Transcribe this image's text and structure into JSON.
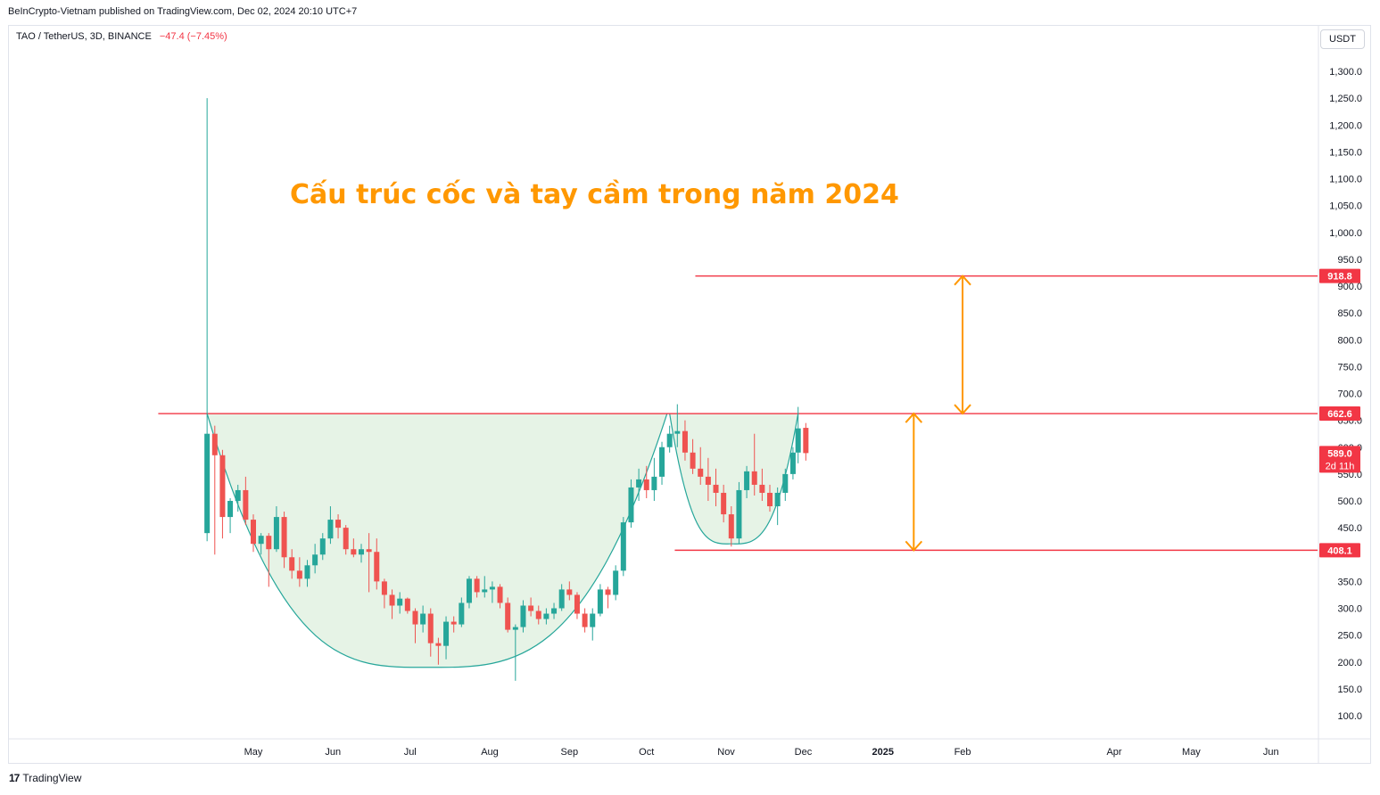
{
  "header": {
    "published": "BeInCrypto-Vietnam published on TradingView.com, Dec 02, 2024 20:10 UTC+7"
  },
  "symbol": {
    "name": "TAO / TetherUS, 3D, BINANCE",
    "change": "−47.4 (−7.45%)"
  },
  "currency_button": "USDT",
  "footer": {
    "brand": "TradingView",
    "logo_icon": "tradingview-logo-icon"
  },
  "colors": {
    "up": "#26a69a",
    "down": "#ef5350",
    "level_line": "#f23645",
    "arrow": "#ff9800",
    "cup_fill": "#e6f3e6",
    "cup_stroke": "#26a69a",
    "title": "#ff9800"
  },
  "chart_data": {
    "type": "candlestick",
    "annotation_title": "Cấu trúc cốc và tay cầm trong năm 2024",
    "y_axis": {
      "ticks": [
        100,
        150,
        200,
        250,
        300,
        350,
        450,
        500,
        550,
        600,
        650,
        700,
        750,
        800,
        850,
        900,
        950,
        1000,
        1050,
        1100,
        1150,
        1200,
        1250,
        1300
      ],
      "tick_labels": [
        "100.0",
        "150.0",
        "200.0",
        "250.0",
        "300.0",
        "350.0",
        "450.0",
        "500.0",
        "550.0",
        "600.0",
        "650.0",
        "700.0",
        "750.0",
        "800.0",
        "850.0",
        "900.0",
        "950.0",
        "1,000.0",
        "1,050.0",
        "1,100.0",
        "1,150.0",
        "1,200.0",
        "1,250.0",
        "1,300.0"
      ],
      "range": [
        55,
        1345
      ]
    },
    "x_axis": {
      "labels": [
        {
          "date": "2024-05-01",
          "text": "May"
        },
        {
          "date": "2024-06-01",
          "text": "Jun"
        },
        {
          "date": "2024-07-01",
          "text": "Jul"
        },
        {
          "date": "2024-08-01",
          "text": "Aug"
        },
        {
          "date": "2024-09-01",
          "text": "Sep"
        },
        {
          "date": "2024-10-01",
          "text": "Oct"
        },
        {
          "date": "2024-11-01",
          "text": "Nov"
        },
        {
          "date": "2024-12-01",
          "text": "Dec"
        },
        {
          "date": "2025-01-01",
          "text": "2025",
          "bold": true
        },
        {
          "date": "2025-02-01",
          "text": "Feb"
        },
        {
          "date": "2025-04-01",
          "text": "Apr"
        },
        {
          "date": "2025-05-01",
          "text": "May"
        },
        {
          "date": "2025-06-01",
          "text": "Jun"
        }
      ]
    },
    "price_badges": [
      {
        "value": 918.8,
        "label": "918.8"
      },
      {
        "value": 662.6,
        "label": "662.6"
      },
      {
        "value": 589.0,
        "label": "589.0",
        "sub": "2d 11h"
      },
      {
        "value": 408.1,
        "label": "408.1"
      }
    ],
    "horizontal_levels": [
      {
        "value": 662.6,
        "from": "2024-03-25",
        "to": "2025-06-20"
      },
      {
        "value": 918.8,
        "from": "2024-10-20",
        "to": "2025-06-20"
      },
      {
        "value": 408.1,
        "from": "2024-10-12",
        "to": "2025-06-20"
      }
    ],
    "arrows": [
      {
        "date": "2025-02-01",
        "from": 662.6,
        "to": 918.8
      },
      {
        "date": "2025-01-13",
        "from": 408.1,
        "to": 662.6
      }
    ],
    "cup": {
      "start": "2024-04-13",
      "bottom": "2024-07-08",
      "end": "2024-10-09",
      "rim": 662.6,
      "low": 190
    },
    "handle": {
      "start": "2024-10-10",
      "bottom": "2024-11-03",
      "end": "2024-11-29",
      "rim": 662.6,
      "low": 420
    },
    "candles": [
      {
        "d": "2024-04-13",
        "o": 440,
        "h": 1250,
        "l": 425,
        "c": 625
      },
      {
        "d": "2024-04-16",
        "o": 625,
        "h": 640,
        "l": 400,
        "c": 585
      },
      {
        "d": "2024-04-19",
        "o": 585,
        "h": 595,
        "l": 430,
        "c": 470
      },
      {
        "d": "2024-04-22",
        "o": 470,
        "h": 505,
        "l": 440,
        "c": 500
      },
      {
        "d": "2024-04-25",
        "o": 500,
        "h": 530,
        "l": 480,
        "c": 520
      },
      {
        "d": "2024-04-28",
        "o": 520,
        "h": 545,
        "l": 455,
        "c": 465
      },
      {
        "d": "2024-05-01",
        "o": 465,
        "h": 475,
        "l": 405,
        "c": 420
      },
      {
        "d": "2024-05-04",
        "o": 420,
        "h": 440,
        "l": 400,
        "c": 435
      },
      {
        "d": "2024-05-07",
        "o": 435,
        "h": 440,
        "l": 340,
        "c": 410
      },
      {
        "d": "2024-05-10",
        "o": 410,
        "h": 490,
        "l": 405,
        "c": 470
      },
      {
        "d": "2024-05-13",
        "o": 470,
        "h": 480,
        "l": 375,
        "c": 395
      },
      {
        "d": "2024-05-16",
        "o": 395,
        "h": 410,
        "l": 355,
        "c": 370
      },
      {
        "d": "2024-05-19",
        "o": 370,
        "h": 395,
        "l": 340,
        "c": 355
      },
      {
        "d": "2024-05-22",
        "o": 355,
        "h": 390,
        "l": 340,
        "c": 380
      },
      {
        "d": "2024-05-25",
        "o": 380,
        "h": 420,
        "l": 365,
        "c": 400
      },
      {
        "d": "2024-05-28",
        "o": 400,
        "h": 440,
        "l": 390,
        "c": 430
      },
      {
        "d": "2024-05-31",
        "o": 430,
        "h": 490,
        "l": 420,
        "c": 465
      },
      {
        "d": "2024-06-03",
        "o": 465,
        "h": 475,
        "l": 430,
        "c": 450
      },
      {
        "d": "2024-06-06",
        "o": 450,
        "h": 455,
        "l": 400,
        "c": 410
      },
      {
        "d": "2024-06-09",
        "o": 410,
        "h": 430,
        "l": 395,
        "c": 400
      },
      {
        "d": "2024-06-12",
        "o": 400,
        "h": 420,
        "l": 385,
        "c": 410
      },
      {
        "d": "2024-06-15",
        "o": 410,
        "h": 440,
        "l": 330,
        "c": 405
      },
      {
        "d": "2024-06-18",
        "o": 405,
        "h": 430,
        "l": 335,
        "c": 350
      },
      {
        "d": "2024-06-21",
        "o": 350,
        "h": 355,
        "l": 300,
        "c": 325
      },
      {
        "d": "2024-06-24",
        "o": 325,
        "h": 335,
        "l": 280,
        "c": 305
      },
      {
        "d": "2024-06-27",
        "o": 305,
        "h": 330,
        "l": 290,
        "c": 318
      },
      {
        "d": "2024-06-30",
        "o": 318,
        "h": 320,
        "l": 290,
        "c": 295
      },
      {
        "d": "2024-07-03",
        "o": 295,
        "h": 300,
        "l": 235,
        "c": 270
      },
      {
        "d": "2024-07-06",
        "o": 270,
        "h": 305,
        "l": 255,
        "c": 290
      },
      {
        "d": "2024-07-09",
        "o": 290,
        "h": 300,
        "l": 210,
        "c": 235
      },
      {
        "d": "2024-07-12",
        "o": 235,
        "h": 245,
        "l": 195,
        "c": 230
      },
      {
        "d": "2024-07-15",
        "o": 230,
        "h": 285,
        "l": 205,
        "c": 275
      },
      {
        "d": "2024-07-18",
        "o": 275,
        "h": 285,
        "l": 255,
        "c": 270
      },
      {
        "d": "2024-07-21",
        "o": 270,
        "h": 320,
        "l": 265,
        "c": 310
      },
      {
        "d": "2024-07-24",
        "o": 310,
        "h": 360,
        "l": 300,
        "c": 355
      },
      {
        "d": "2024-07-27",
        "o": 355,
        "h": 360,
        "l": 320,
        "c": 330
      },
      {
        "d": "2024-07-30",
        "o": 330,
        "h": 360,
        "l": 320,
        "c": 335
      },
      {
        "d": "2024-08-02",
        "o": 335,
        "h": 350,
        "l": 310,
        "c": 340
      },
      {
        "d": "2024-08-05",
        "o": 340,
        "h": 345,
        "l": 300,
        "c": 310
      },
      {
        "d": "2024-08-08",
        "o": 310,
        "h": 320,
        "l": 255,
        "c": 260
      },
      {
        "d": "2024-08-11",
        "o": 260,
        "h": 270,
        "l": 165,
        "c": 265
      },
      {
        "d": "2024-08-14",
        "o": 265,
        "h": 315,
        "l": 255,
        "c": 305
      },
      {
        "d": "2024-08-17",
        "o": 305,
        "h": 320,
        "l": 285,
        "c": 295
      },
      {
        "d": "2024-08-20",
        "o": 295,
        "h": 305,
        "l": 270,
        "c": 280
      },
      {
        "d": "2024-08-23",
        "o": 280,
        "h": 300,
        "l": 270,
        "c": 290
      },
      {
        "d": "2024-08-26",
        "o": 290,
        "h": 310,
        "l": 280,
        "c": 300
      },
      {
        "d": "2024-08-29",
        "o": 300,
        "h": 345,
        "l": 295,
        "c": 335
      },
      {
        "d": "2024-09-01",
        "o": 335,
        "h": 350,
        "l": 315,
        "c": 325
      },
      {
        "d": "2024-09-04",
        "o": 325,
        "h": 330,
        "l": 280,
        "c": 290
      },
      {
        "d": "2024-09-07",
        "o": 290,
        "h": 300,
        "l": 255,
        "c": 265
      },
      {
        "d": "2024-09-10",
        "o": 265,
        "h": 300,
        "l": 240,
        "c": 290
      },
      {
        "d": "2024-09-13",
        "o": 290,
        "h": 345,
        "l": 285,
        "c": 335
      },
      {
        "d": "2024-09-16",
        "o": 335,
        "h": 340,
        "l": 300,
        "c": 325
      },
      {
        "d": "2024-09-19",
        "o": 325,
        "h": 380,
        "l": 315,
        "c": 370
      },
      {
        "d": "2024-09-22",
        "o": 370,
        "h": 470,
        "l": 360,
        "c": 460
      },
      {
        "d": "2024-09-25",
        "o": 460,
        "h": 540,
        "l": 450,
        "c": 525
      },
      {
        "d": "2024-09-28",
        "o": 525,
        "h": 560,
        "l": 500,
        "c": 540
      },
      {
        "d": "2024-10-01",
        "o": 540,
        "h": 565,
        "l": 505,
        "c": 520
      },
      {
        "d": "2024-10-04",
        "o": 520,
        "h": 580,
        "l": 500,
        "c": 545
      },
      {
        "d": "2024-10-07",
        "o": 545,
        "h": 610,
        "l": 530,
        "c": 600
      },
      {
        "d": "2024-10-10",
        "o": 600,
        "h": 640,
        "l": 590,
        "c": 625
      },
      {
        "d": "2024-10-13",
        "o": 625,
        "h": 680,
        "l": 600,
        "c": 630
      },
      {
        "d": "2024-10-16",
        "o": 630,
        "h": 650,
        "l": 575,
        "c": 590
      },
      {
        "d": "2024-10-19",
        "o": 590,
        "h": 615,
        "l": 550,
        "c": 560
      },
      {
        "d": "2024-10-22",
        "o": 560,
        "h": 600,
        "l": 530,
        "c": 545
      },
      {
        "d": "2024-10-25",
        "o": 545,
        "h": 580,
        "l": 500,
        "c": 530
      },
      {
        "d": "2024-10-28",
        "o": 530,
        "h": 560,
        "l": 490,
        "c": 515
      },
      {
        "d": "2024-10-31",
        "o": 515,
        "h": 530,
        "l": 460,
        "c": 475
      },
      {
        "d": "2024-11-03",
        "o": 475,
        "h": 490,
        "l": 415,
        "c": 430
      },
      {
        "d": "2024-11-06",
        "o": 430,
        "h": 535,
        "l": 420,
        "c": 520
      },
      {
        "d": "2024-11-09",
        "o": 520,
        "h": 565,
        "l": 505,
        "c": 555
      },
      {
        "d": "2024-11-12",
        "o": 555,
        "h": 625,
        "l": 510,
        "c": 530
      },
      {
        "d": "2024-11-15",
        "o": 530,
        "h": 560,
        "l": 500,
        "c": 515
      },
      {
        "d": "2024-11-18",
        "o": 515,
        "h": 530,
        "l": 480,
        "c": 490
      },
      {
        "d": "2024-11-21",
        "o": 490,
        "h": 525,
        "l": 455,
        "c": 515
      },
      {
        "d": "2024-11-24",
        "o": 515,
        "h": 560,
        "l": 500,
        "c": 550
      },
      {
        "d": "2024-11-27",
        "o": 550,
        "h": 600,
        "l": 540,
        "c": 590
      },
      {
        "d": "2024-11-29",
        "o": 590,
        "h": 675,
        "l": 570,
        "c": 635
      },
      {
        "d": "2024-12-02",
        "o": 636,
        "h": 645,
        "l": 575,
        "c": 589
      }
    ]
  }
}
